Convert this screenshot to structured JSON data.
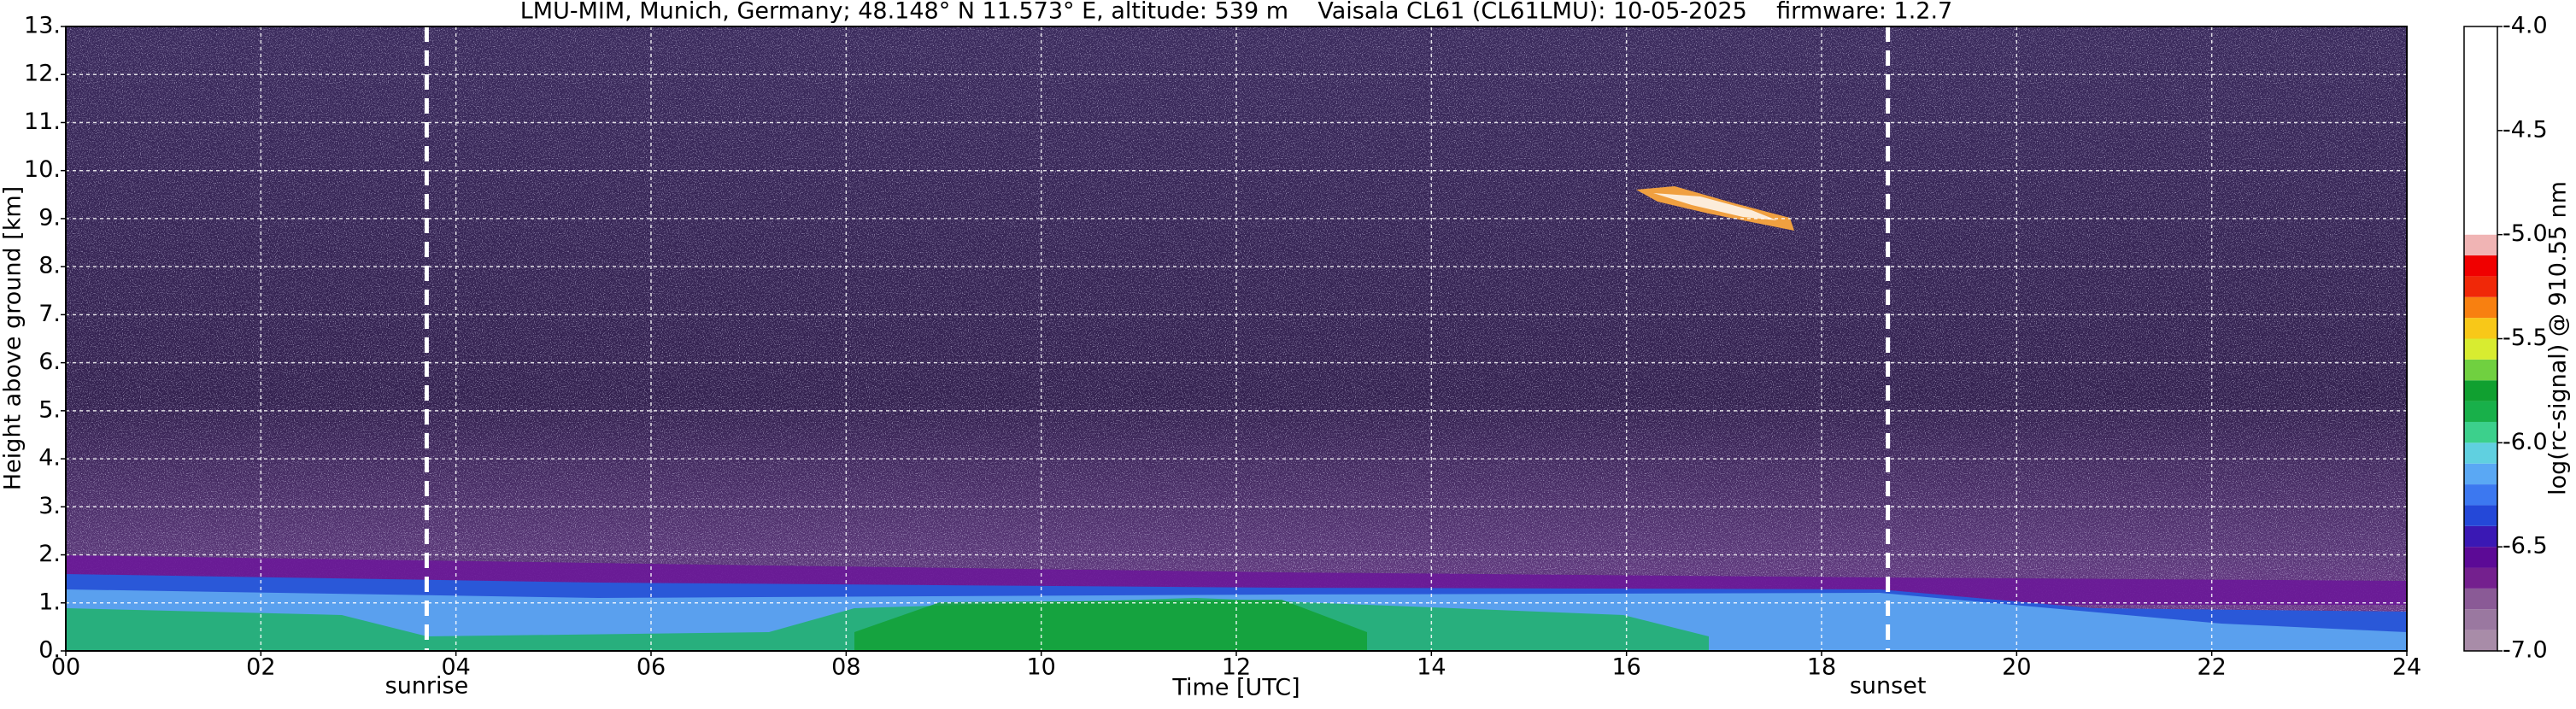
{
  "chart_data": {
    "type": "heatmap",
    "title": "LMU-MIM, Munich, Germany; 48.148° N 11.573° E, altitude: 539 m    Vaisala CL61 (CL61LMU): 10-05-2025    firmware: 1.2.7",
    "x_label": "Time [UTC]",
    "y_label": "Height above ground [km]",
    "xlim": [
      0,
      24
    ],
    "xticks": [
      {
        "value": 0,
        "label": "00"
      },
      {
        "value": 2,
        "label": "02"
      },
      {
        "value": 4,
        "label": "04"
      },
      {
        "value": 6,
        "label": "06"
      },
      {
        "value": 8,
        "label": "08"
      },
      10,
      12,
      14,
      16,
      18,
      20,
      22,
      24
    ],
    "ylim": [
      0,
      13
    ],
    "yticks": [
      {
        "value": 0,
        "label": "0."
      },
      {
        "value": 1,
        "label": "1."
      },
      {
        "value": 2,
        "label": "2."
      },
      {
        "value": 3,
        "label": "3."
      },
      {
        "value": 4,
        "label": "4."
      },
      {
        "value": 5,
        "label": "5."
      },
      {
        "value": 6,
        "label": "6."
      },
      {
        "value": 7,
        "label": "7."
      },
      {
        "value": 8,
        "label": "8."
      },
      {
        "value": 9,
        "label": "9."
      },
      {
        "value": 10,
        "label": "10."
      },
      {
        "value": 11,
        "label": "11."
      },
      {
        "value": 12,
        "label": "12."
      },
      {
        "value": 13,
        "label": "13."
      }
    ],
    "grid": true,
    "annotations": [
      {
        "text": "sunrise",
        "x": 3.7
      },
      {
        "text": "sunset",
        "x": 18.68
      }
    ],
    "colorbar": {
      "label": "log(rc-signal) @ 910.55 nm",
      "lim": [
        -7,
        -4
      ],
      "ticks": [
        {
          "value": -7,
          "label": "-7.0"
        },
        -6.5,
        {
          "value": -6,
          "label": "-6.0"
        },
        -5.5,
        {
          "value": -5,
          "label": "-5.0"
        },
        -4.5,
        {
          "value": -4,
          "label": "-4.0"
        }
      ],
      "levels": [
        -7.0,
        -6.9,
        -6.8,
        -6.7,
        -6.6,
        -6.5,
        -6.4,
        -6.3,
        -6.2,
        -6.1,
        -6.0,
        -5.9,
        -5.8,
        -5.7,
        -5.6,
        -5.5,
        -5.4,
        -5.3,
        -5.2,
        -5.1,
        -5.0,
        -4.0
      ],
      "colors": [
        "#a88ca8",
        "#9a78a0",
        "#8a5a96",
        "#74208e",
        "#5c0a96",
        "#3a18b4",
        "#2448d8",
        "#3c78f0",
        "#5aa8f4",
        "#60d0e0",
        "#3cd08c",
        "#18b04a",
        "#10a030",
        "#70d040",
        "#d8ec30",
        "#f8c818",
        "#f88010",
        "#f02808",
        "#f00000",
        "#f0b4b4",
        "#ffffff"
      ]
    }
  }
}
